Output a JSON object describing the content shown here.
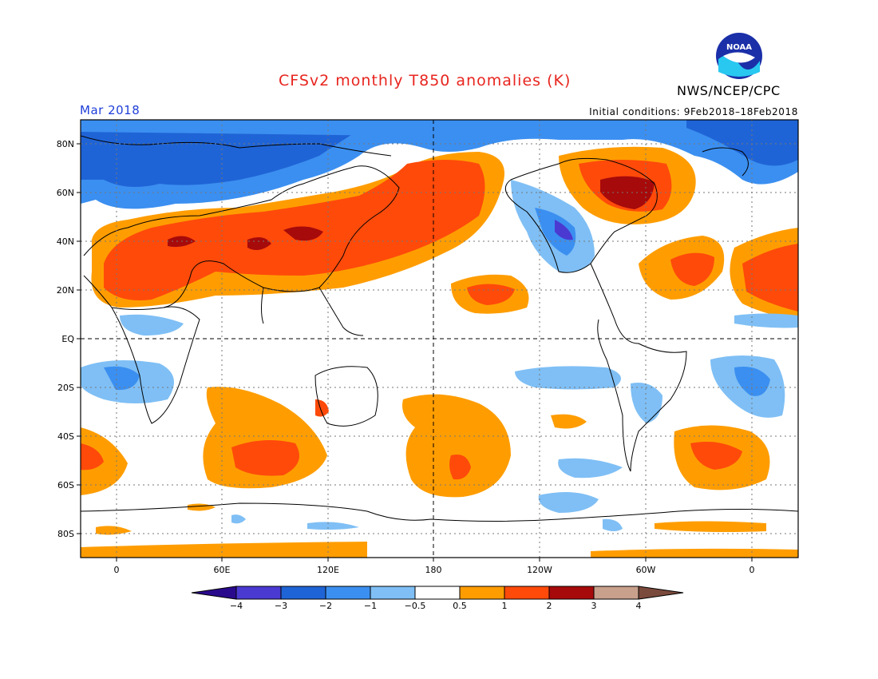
{
  "title": "CFSv2 monthly T850 anomalies (K)",
  "agency": "NWS/NCEP/CPC",
  "logo_text": "NOAA",
  "month": "Mar 2018",
  "initial_conditions": "Initial conditions: 9Feb2018–18Feb2018",
  "lat_labels": [
    "80N",
    "60N",
    "40N",
    "20N",
    "EQ",
    "20S",
    "40S",
    "60S",
    "80S"
  ],
  "lon_labels": [
    "0",
    "60E",
    "120E",
    "180",
    "120W",
    "60W",
    "0"
  ],
  "colorbar": {
    "labels": [
      "−4",
      "−3",
      "−2",
      "−1",
      "−0.5",
      "0.5",
      "1",
      "2",
      "3",
      "4"
    ],
    "colors": [
      "#2a0a8c",
      "#4a3ad1",
      "#1f64d6",
      "#3b8ff0",
      "#7fbff5",
      "#ffffff",
      "#ff9d00",
      "#ff4a0a",
      "#a60a0a",
      "#c8a08c",
      "#7a4a3c"
    ]
  }
}
